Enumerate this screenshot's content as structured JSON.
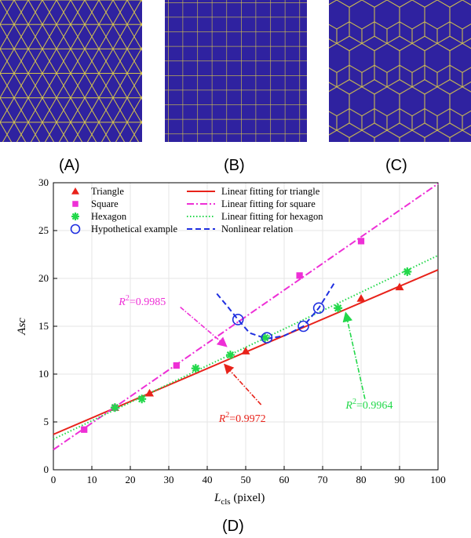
{
  "panels": [
    {
      "label": "(A)",
      "pattern": "triangle"
    },
    {
      "label": "(B)",
      "pattern": "square"
    },
    {
      "label": "(C)",
      "pattern": "hexagon"
    }
  ],
  "panel_d_label": "(D)",
  "colors": {
    "tile_fill": "#2f22a0",
    "tile_line": "#d7c64a"
  },
  "chart_data": {
    "type": "scatter",
    "xlabel_main": "L",
    "xlabel_sub": "cls",
    "xlabel_unit": " (pixel)",
    "ylabel": "Asc",
    "xlim": [
      0,
      100
    ],
    "ylim": [
      0,
      30
    ],
    "xticks": [
      0,
      10,
      20,
      30,
      40,
      50,
      60,
      70,
      80,
      90,
      100
    ],
    "yticks": [
      0,
      5,
      10,
      15,
      20,
      25,
      30
    ],
    "grid": true,
    "legend_position": "top-left",
    "series": [
      {
        "name": "Triangle",
        "marker": "triangle",
        "color": "#e8221a",
        "x": [
          16,
          25,
          50,
          80,
          90
        ],
        "y": [
          6.5,
          8.0,
          12.4,
          17.9,
          19.1
        ]
      },
      {
        "name": "Square",
        "marker": "square",
        "color": "#ee2fd6",
        "x": [
          8,
          16,
          32,
          64,
          80
        ],
        "y": [
          4.2,
          6.5,
          10.9,
          20.3,
          23.9
        ]
      },
      {
        "name": "Hexagon",
        "marker": "star",
        "color": "#22d84a",
        "x": [
          16,
          23,
          37,
          46,
          55,
          74,
          92
        ],
        "y": [
          6.5,
          7.4,
          10.6,
          12.0,
          13.8,
          16.9,
          20.7
        ]
      },
      {
        "name": "Hypothetical example",
        "marker": "circle",
        "color": "#1f2fe0",
        "x": [
          48,
          55.5,
          65,
          69
        ],
        "y": [
          15.7,
          13.8,
          15.0,
          16.9
        ]
      }
    ],
    "fits": [
      {
        "name": "Linear fitting for triangle",
        "style": "solid",
        "color": "#e8221a",
        "x": [
          0,
          100
        ],
        "y": [
          3.7,
          20.9
        ]
      },
      {
        "name": "Linear fitting for square",
        "style": "dashdot",
        "color": "#ee2fd6",
        "x": [
          0,
          100
        ],
        "y": [
          2.1,
          29.9
        ]
      },
      {
        "name": "Linear fitting for hexagon",
        "style": "dotted",
        "color": "#22d84a",
        "x": [
          0,
          100
        ],
        "y": [
          3.2,
          22.4
        ]
      },
      {
        "name": "Nonlinear relation",
        "style": "dashed",
        "color": "#1f2fe0",
        "x": [
          42.5,
          45,
          48,
          51,
          55.5,
          60,
          65,
          69,
          73
        ],
        "y": [
          18.4,
          17.2,
          15.7,
          14.3,
          13.7,
          14.0,
          15.0,
          16.9,
          19.5
        ]
      }
    ],
    "annotations": [
      {
        "text_base": "R",
        "text_exp": "2",
        "text_val": "=0.9985",
        "color": "#ee2fd6",
        "label_at": [
          17,
          17.2
        ],
        "arrow_from": [
          39,
          16.5
        ],
        "arrow_to": [
          45,
          12.9
        ],
        "arrow_mid": [
          33,
          17.0
        ]
      },
      {
        "text_base": "R",
        "text_exp": "2",
        "text_val": "=0.9972",
        "color": "#e8221a",
        "label_at": [
          43,
          5.0
        ],
        "arrow_from": [
          54,
          6.8
        ],
        "arrow_to": [
          44.5,
          11.0
        ],
        "arrow_mid": null
      },
      {
        "text_base": "R",
        "text_exp": "2",
        "text_val": "=0.9964",
        "color": "#22d84a",
        "label_at": [
          76,
          6.4
        ],
        "arrow_from": [
          81,
          7.4
        ],
        "arrow_to": [
          76,
          16.4
        ],
        "arrow_mid": [
          81,
          7.4
        ]
      }
    ]
  }
}
